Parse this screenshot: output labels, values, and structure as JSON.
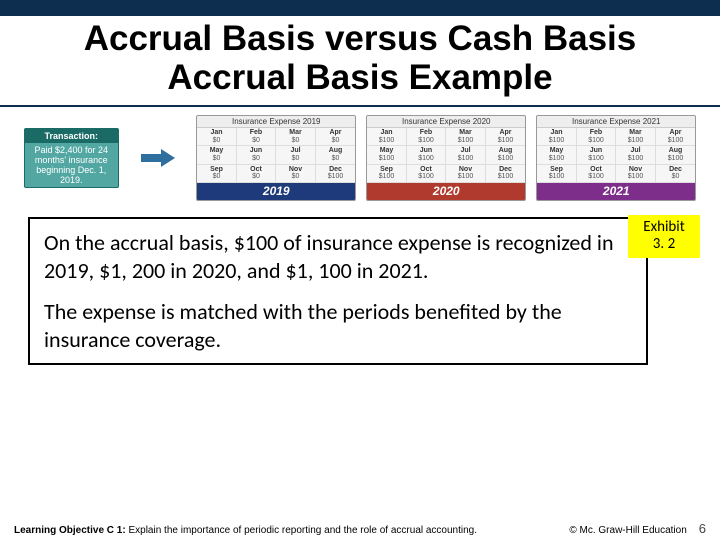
{
  "colors": {
    "topbar": "#0e2e50",
    "transaction_bg": "#52a7a3",
    "transaction_head_bg": "#1a6a66",
    "exhibit_bg": "#ffff00",
    "arrow": "#2f6f9f",
    "year_band": {
      "2019": "#1f3a7a",
      "2020": "#b03a2e",
      "2021": "#7d2e8a"
    }
  },
  "title": {
    "line1": "Accrual Basis versus Cash Basis",
    "line2": "Accrual Basis Example"
  },
  "transaction": {
    "heading": "Transaction:",
    "body": "Paid $2,400 for 24 months' insurance beginning Dec. 1, 2019."
  },
  "calendars": [
    {
      "title": "Insurance Expense 2019",
      "year": "2019",
      "band_color": "#1f3a7a",
      "months": [
        "Jan",
        "Feb",
        "Mar",
        "Apr",
        "May",
        "Jun",
        "Jul",
        "Aug",
        "Sep",
        "Oct",
        "Nov",
        "Dec"
      ],
      "values": [
        "$0",
        "$0",
        "$0",
        "$0",
        "$0",
        "$0",
        "$0",
        "$0",
        "$0",
        "$0",
        "$0",
        "$100"
      ]
    },
    {
      "title": "Insurance Expense 2020",
      "year": "2020",
      "band_color": "#b03a2e",
      "months": [
        "Jan",
        "Feb",
        "Mar",
        "Apr",
        "May",
        "Jun",
        "Jul",
        "Aug",
        "Sep",
        "Oct",
        "Nov",
        "Dec"
      ],
      "values": [
        "$100",
        "$100",
        "$100",
        "$100",
        "$100",
        "$100",
        "$100",
        "$100",
        "$100",
        "$100",
        "$100",
        "$100"
      ]
    },
    {
      "title": "Insurance Expense 2021",
      "year": "2021",
      "band_color": "#7d2e8a",
      "months": [
        "Jan",
        "Feb",
        "Mar",
        "Apr",
        "May",
        "Jun",
        "Jul",
        "Aug",
        "Sep",
        "Oct",
        "Nov",
        "Dec"
      ],
      "values": [
        "$100",
        "$100",
        "$100",
        "$100",
        "$100",
        "$100",
        "$100",
        "$100",
        "$100",
        "$100",
        "$100",
        "$0"
      ]
    }
  ],
  "explanation": {
    "p1": "On the accrual basis, $100 of insurance expense is recognized in 2019, $1, 200 in 2020, and $1, 100 in 2021.",
    "p2": "The expense is matched with the periods benefited by the insurance coverage."
  },
  "exhibit": {
    "line1": "Exhibit",
    "line2": "3. 2"
  },
  "footer": {
    "learning_objective_label": "Learning Objective C 1:",
    "learning_objective_text": " Explain the importance of periodic reporting and the role of accrual accounting.",
    "copyright": "© Mc. Graw-Hill Education",
    "page_number": "6"
  }
}
